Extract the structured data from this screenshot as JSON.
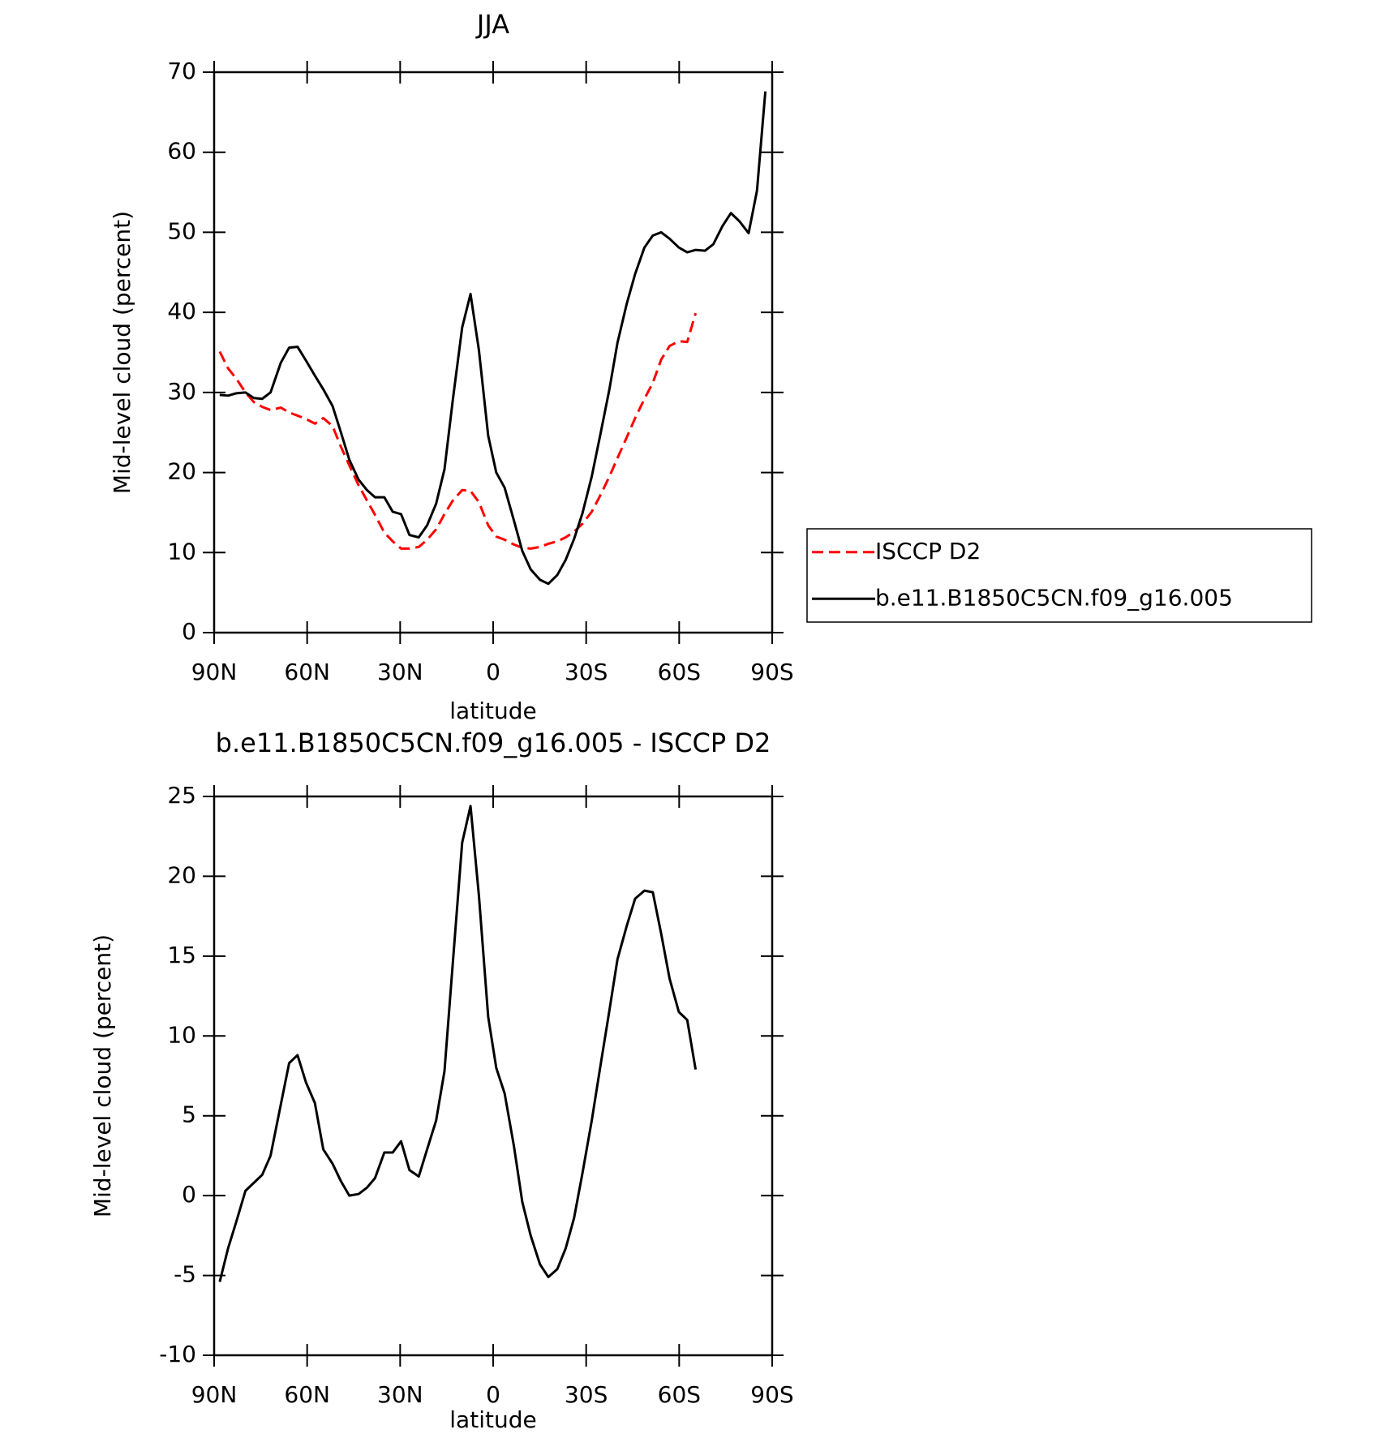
{
  "chart_data": [
    {
      "type": "line",
      "title": "JJA",
      "xlabel": "latitude",
      "ylabel": "Mid-level cloud (percent)",
      "x": [
        88.2,
        85.5,
        82.8,
        79.9,
        77.2,
        74.5,
        71.8,
        68.5,
        65.8,
        63.1,
        60.4,
        57.5,
        54.8,
        51.8,
        49.1,
        46.4,
        43.4,
        40.7,
        38.1,
        35.1,
        32.4,
        29.7,
        27.0,
        24.0,
        21.3,
        18.4,
        15.7,
        13.0,
        10.0,
        7.3,
        4.6,
        1.6,
        -1.0,
        -3.7,
        -6.7,
        -9.4,
        -12.1,
        -15.1,
        -17.8,
        -20.7,
        -23.4,
        -26.1,
        -28.8,
        -31.8,
        -34.5,
        -37.5,
        -40.1,
        -43.1,
        -45.8,
        -48.8,
        -51.5,
        -54.2,
        -56.9,
        -59.9,
        -62.6,
        -65.3,
        -68.3,
        -71.0,
        -74.0,
        -76.7,
        -79.4,
        -82.4,
        -85.1,
        -87.8
      ],
      "series": [
        {
          "name": "ISCCP D2",
          "color": "#ff0000",
          "line_style": "dashed",
          "values": [
            35.1,
            33.0,
            31.7,
            30.0,
            28.8,
            28.2,
            27.8,
            28.1,
            27.5,
            27.1,
            26.7,
            26.1,
            26.8,
            25.8,
            23.2,
            20.9,
            18.4,
            16.5,
            14.7,
            12.5,
            11.4,
            10.5,
            10.5,
            10.7,
            11.6,
            12.9,
            14.8,
            16.5,
            17.8,
            17.7,
            16.3,
            13.4,
            12.0,
            11.6,
            11.0,
            10.6,
            10.5,
            10.7,
            11.1,
            11.4,
            11.9,
            12.6,
            13.6,
            15.1,
            17.1,
            19.5,
            21.8,
            24.4,
            26.8,
            29.2,
            31.2,
            34.1,
            35.8,
            36.4,
            36.3,
            39.9,
            null,
            null,
            null,
            null,
            null,
            null,
            null,
            null
          ]
        },
        {
          "name": "b.e11.B1850C5CN.f09_g16.005",
          "color": "#000000",
          "line_style": "solid",
          "values": [
            29.7,
            29.6,
            29.9,
            30.0,
            29.3,
            29.2,
            30.0,
            33.7,
            35.6,
            35.7,
            34.0,
            32.1,
            30.4,
            28.3,
            25.0,
            21.6,
            19.1,
            17.8,
            16.9,
            16.9,
            15.1,
            14.8,
            12.2,
            11.9,
            13.4,
            16.1,
            20.4,
            29.1,
            38.1,
            42.3,
            35.3,
            24.6,
            20.0,
            18.1,
            14.0,
            10.2,
            7.9,
            6.6,
            6.1,
            7.2,
            9.1,
            11.7,
            14.9,
            19.5,
            24.6,
            30.4,
            36.2,
            41.1,
            44.8,
            48.1,
            49.6,
            50.0,
            49.2,
            48.1,
            47.5,
            47.8,
            47.7,
            48.5,
            50.8,
            52.4,
            51.4,
            49.9,
            55.2,
            67.6
          ]
        }
      ],
      "xlim": [
        90,
        -90
      ],
      "xticks": [
        {
          "value": 90,
          "label": "90N"
        },
        {
          "value": 60,
          "label": "60N"
        },
        {
          "value": 30,
          "label": "30N"
        },
        0,
        {
          "value": -30,
          "label": "30S"
        },
        {
          "value": -60,
          "label": "60S"
        },
        {
          "value": -90,
          "label": "90S"
        }
      ],
      "ylim": [
        0,
        70
      ],
      "yticks": [
        0,
        10,
        20,
        30,
        40,
        50,
        60,
        70
      ],
      "legend": "right"
    },
    {
      "type": "line",
      "title": "b.e11.B1850C5CN.f09_g16.005 - ISCCP D2",
      "xlabel": "latitude",
      "ylabel": "Mid-level cloud (percent)",
      "x": [
        88.2,
        85.5,
        82.8,
        79.9,
        77.2,
        74.5,
        71.8,
        68.5,
        65.8,
        63.1,
        60.4,
        57.5,
        54.8,
        51.8,
        49.1,
        46.4,
        43.4,
        40.7,
        38.1,
        35.1,
        32.4,
        29.7,
        27.0,
        24.0,
        21.3,
        18.4,
        15.7,
        13.0,
        10.0,
        7.3,
        4.6,
        1.6,
        -1.0,
        -3.7,
        -6.7,
        -9.4,
        -12.1,
        -15.1,
        -17.8,
        -20.7,
        -23.4,
        -26.1,
        -28.8,
        -31.8,
        -34.5,
        -37.5,
        -40.1,
        -43.1,
        -45.8,
        -48.8,
        -51.5,
        -54.2,
        -56.9,
        -59.9,
        -62.6,
        -65.3,
        -68.3,
        -71.0,
        -74.0,
        -76.7,
        -79.4,
        -82.4,
        -85.1,
        -87.8
      ],
      "series": [
        {
          "color": "#000000",
          "line_style": "solid",
          "values": [
            -5.4,
            -3.3,
            -1.6,
            0.3,
            0.8,
            1.3,
            2.5,
            5.7,
            8.3,
            8.8,
            7.1,
            5.8,
            2.9,
            2.0,
            0.9,
            0.0,
            0.1,
            0.5,
            1.1,
            2.7,
            2.7,
            3.4,
            1.6,
            1.2,
            2.9,
            4.7,
            7.8,
            14.6,
            22.1,
            24.4,
            18.8,
            11.2,
            8.0,
            6.4,
            3.1,
            -0.4,
            -2.5,
            -4.3,
            -5.1,
            -4.6,
            -3.3,
            -1.4,
            1.4,
            4.7,
            8.0,
            11.6,
            14.8,
            16.9,
            18.6,
            19.1,
            19.0,
            16.4,
            13.6,
            11.5,
            11.0,
            7.9,
            null,
            null,
            null,
            null,
            null,
            null,
            null,
            null
          ]
        }
      ],
      "xlim": [
        90,
        -90
      ],
      "xticks": [
        {
          "value": 90,
          "label": "90N"
        },
        {
          "value": 60,
          "label": "60N"
        },
        {
          "value": 30,
          "label": "30N"
        },
        0,
        {
          "value": -30,
          "label": "30S"
        },
        {
          "value": -60,
          "label": "60S"
        },
        {
          "value": -90,
          "label": "90S"
        }
      ],
      "ylim": [
        -10,
        25
      ],
      "yticks": [
        -10,
        -5,
        0,
        5,
        10,
        15,
        20,
        25
      ]
    }
  ]
}
